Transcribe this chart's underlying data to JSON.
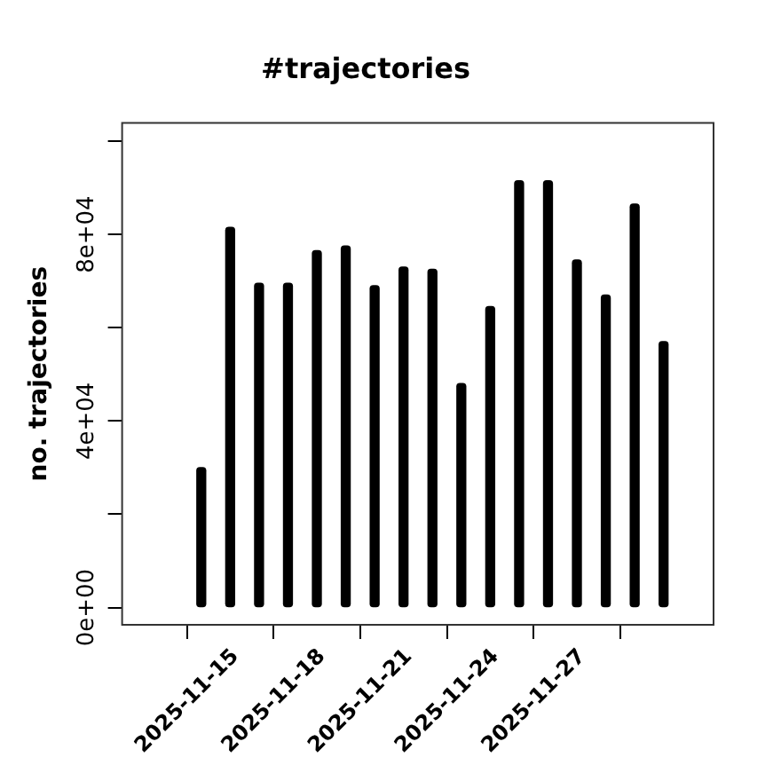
{
  "chart_data": {
    "type": "bar",
    "title": "#trajectories",
    "ylabel": "no. trajectories",
    "x": [
      "2025-11-14",
      "2025-11-15",
      "2025-11-16",
      "2025-11-17",
      "2025-11-18",
      "2025-11-19",
      "2025-11-20",
      "2025-11-21",
      "2025-11-22",
      "2025-11-23",
      "2025-11-24",
      "2025-11-25",
      "2025-11-26",
      "2025-11-27",
      "2025-11-28",
      "2025-11-29",
      "2025-11-30"
    ],
    "values": [
      30000,
      81500,
      69500,
      69500,
      76500,
      77500,
      69000,
      73000,
      72500,
      48000,
      64500,
      91500,
      91500,
      74500,
      67000,
      86500,
      57000
    ],
    "color": "#000000",
    "xlim": [
      "2025-11-11T06:15",
      "2025-12-01T17:30"
    ],
    "xticks": [
      "2025-11-15",
      "2025-11-18",
      "2025-11-21",
      "2025-11-24",
      "2025-11-27"
    ],
    "ylim": [
      -3700,
      103900
    ],
    "yticks": [
      {
        "value": 0,
        "label": "0e+00"
      },
      {
        "value": 20000,
        "label": null
      },
      {
        "value": 40000,
        "label": "4e+04"
      },
      {
        "value": 60000,
        "label": null
      },
      {
        "value": 80000,
        "label": "8e+04"
      },
      {
        "value": 100000,
        "label": null
      }
    ],
    "grid": false,
    "legend": false
  }
}
